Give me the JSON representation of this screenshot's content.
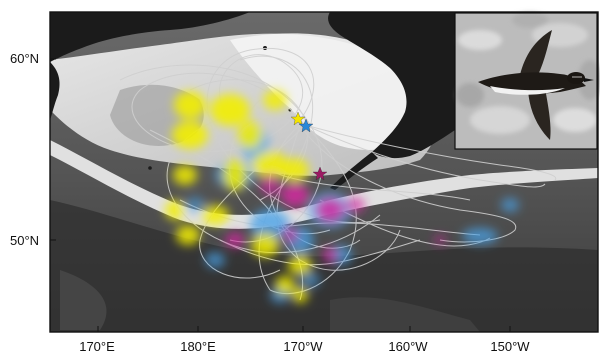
{
  "map": {
    "latitude_labels": [
      "60°N",
      "50°N"
    ],
    "longitude_labels": [
      "170°E",
      "180°E",
      "170°W",
      "160°W",
      "150°W"
    ]
  },
  "legend_markers": {
    "star_colors": [
      "#f4e400",
      "#2a88d8",
      "#9c1a62"
    ]
  },
  "colors": {
    "land": "#1b1b1b",
    "sea_ice_light": "#f0f0f0",
    "bathymetry_dark": "#3a3a3a",
    "tracks": "#c8c8c8",
    "kernel_yellow": "#f2ee00",
    "kernel_blue": "#4aa3e8",
    "kernel_magenta": "#d42aa0"
  },
  "inset": {
    "subject": "seabird-in-flight-photo"
  }
}
